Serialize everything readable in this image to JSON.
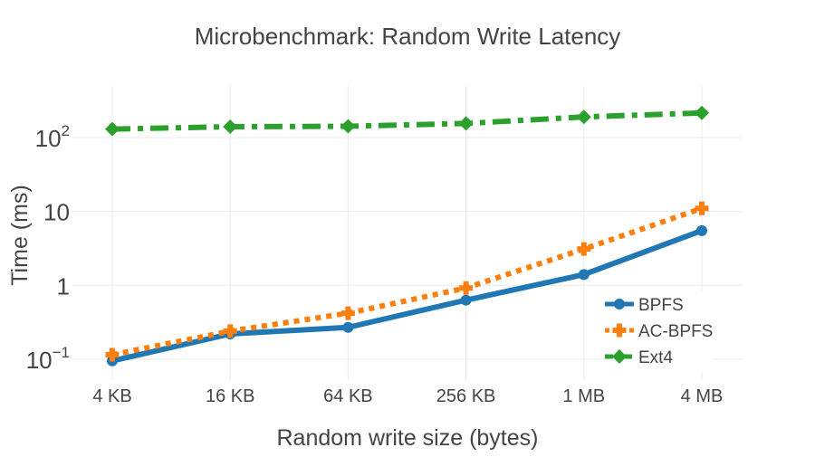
{
  "chart_data": {
    "type": "line",
    "title": "Microbenchmark: Random Write Latency",
    "xlabel": "Random write size (bytes)",
    "ylabel": "Time (ms)",
    "y_scale": "log",
    "ylim": [
      0.06,
      400
    ],
    "categories": [
      "4 KB",
      "16 KB",
      "64 KB",
      "256 KB",
      "1 MB",
      "4 MB"
    ],
    "y_ticks": [
      {
        "value": 0.1,
        "base": "10",
        "exp": "−1"
      },
      {
        "value": 1,
        "base": "1",
        "exp": ""
      },
      {
        "value": 10,
        "base": "10",
        "exp": ""
      },
      {
        "value": 100,
        "base": "10",
        "exp": "2"
      }
    ],
    "grid": true,
    "legend_position": "bottom-right",
    "series": [
      {
        "name": "BPFS",
        "color": "#1f77b4",
        "marker": "circle",
        "line": "solid",
        "values": [
          0.095,
          0.22,
          0.27,
          0.63,
          1.4,
          5.5
        ]
      },
      {
        "name": "AC-BPFS",
        "color": "#ff7f0e",
        "marker": "cross",
        "line": "dot",
        "values": [
          0.115,
          0.24,
          0.42,
          0.92,
          3.1,
          11
        ]
      },
      {
        "name": "Ext4",
        "color": "#2ca02c",
        "marker": "diamond",
        "line": "dashdot",
        "values": [
          130,
          140,
          142,
          155,
          190,
          215
        ]
      }
    ]
  }
}
